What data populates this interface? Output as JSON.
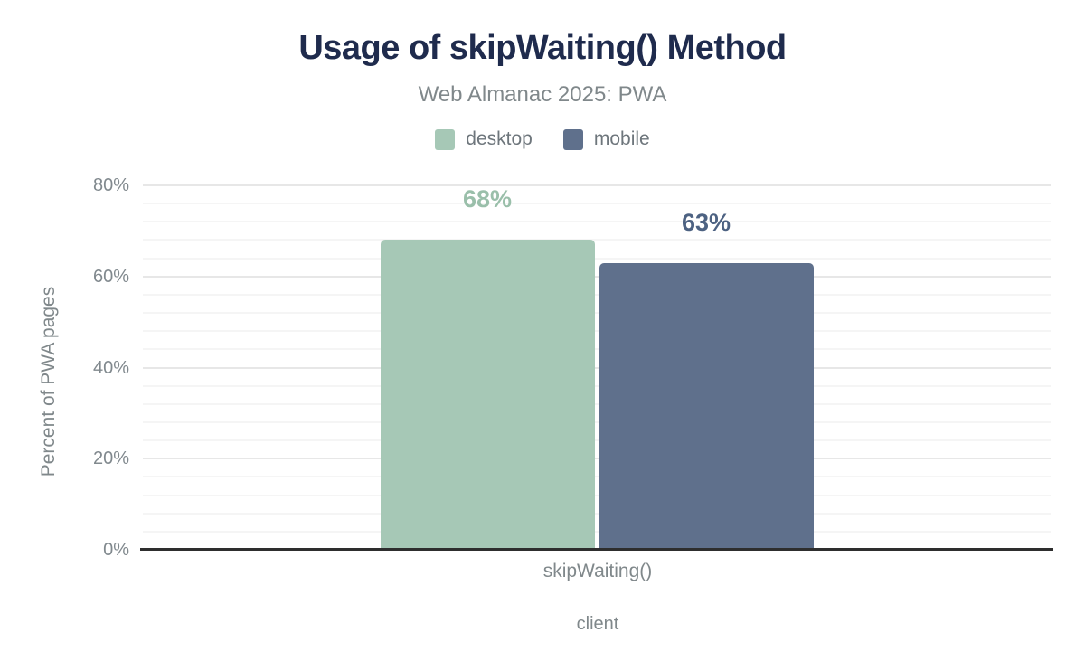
{
  "chart_data": {
    "type": "bar",
    "title": "Usage of skipWaiting() Method",
    "subtitle": "Web Almanac 2025: PWA",
    "categories": [
      "skipWaiting()"
    ],
    "series": [
      {
        "name": "desktop",
        "values": [
          68
        ],
        "data_labels": [
          "68%"
        ],
        "color": "#a6c8b6",
        "label_color": "#9abfaa"
      },
      {
        "name": "mobile",
        "values": [
          63
        ],
        "data_labels": [
          "63%"
        ],
        "color": "#5f708c",
        "label_color": "#4d6282"
      }
    ],
    "xlabel": "client",
    "ylabel": "Percent of PWA pages",
    "ylim": [
      0,
      80
    ],
    "yticks": [
      0,
      20,
      40,
      60,
      80
    ],
    "ytick_labels": [
      "0%",
      "20%",
      "40%",
      "60%",
      "80%"
    ],
    "minor_grid_step": 4,
    "grid": true,
    "legend_position": "top",
    "colors": {
      "title_text": "#1f2b4d",
      "subtitle_text": "#80888b",
      "tick_text": "#81898e",
      "axis_line": "#2e2e2e",
      "major_grid": "#e7e7e7",
      "minor_grid": "#f5f5f5"
    }
  }
}
